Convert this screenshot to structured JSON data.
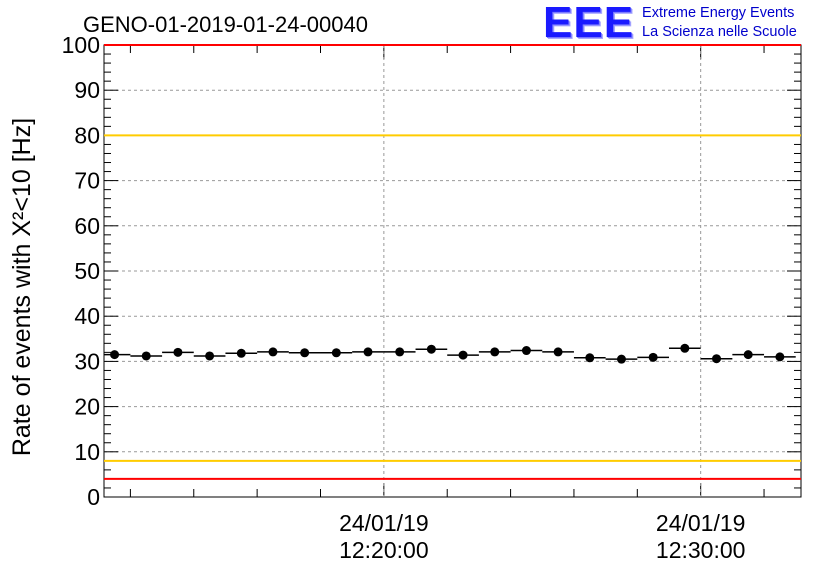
{
  "logo": {
    "mark": "EEE",
    "line1": "Extreme Energy Events",
    "line2": "La Scienza nelle Scuole",
    "color": "#1a1aff"
  },
  "chart_data": {
    "type": "scatter",
    "title": "GENO-01-2019-01-24-00040",
    "ylabel": "Rate of events with X²<10 [Hz]",
    "xlabel": "",
    "ylim": [
      0,
      100
    ],
    "yticks": [
      0,
      10,
      20,
      30,
      40,
      50,
      60,
      70,
      80,
      90,
      100
    ],
    "xlim": [
      "24/01/19 12:11:10",
      "24/01/19 12:33:10"
    ],
    "xticks": [
      {
        "x": "24/01/19 12:20:00",
        "date": "24/01/19",
        "time": "12:20:00"
      },
      {
        "x": "24/01/19 12:30:00",
        "date": "24/01/19",
        "time": "12:30:00"
      }
    ],
    "grid": true,
    "series": [
      {
        "x": [
          "12:11:30",
          "12:12:30",
          "12:13:30",
          "12:14:30",
          "12:15:30",
          "12:16:30",
          "12:17:30",
          "12:18:30",
          "12:19:30",
          "12:20:30",
          "12:21:30",
          "12:22:30",
          "12:23:30",
          "12:24:30",
          "12:25:30",
          "12:26:30",
          "12:27:30",
          "12:28:30",
          "12:29:30",
          "12:30:30",
          "12:31:30",
          "12:32:30"
        ],
        "values": [
          31.5,
          31.2,
          32.0,
          31.2,
          31.8,
          32.1,
          31.9,
          31.9,
          32.1,
          32.1,
          32.7,
          31.4,
          32.1,
          32.4,
          32.1,
          30.8,
          30.5,
          30.9,
          32.9,
          30.6,
          31.5,
          31.0
        ],
        "color": "#000000"
      }
    ],
    "reference_lines": [
      {
        "y": 100,
        "color": "#ff0000"
      },
      {
        "y": 80,
        "color": "#ffcc00"
      },
      {
        "y": 8,
        "color": "#ffcc00"
      },
      {
        "y": 4,
        "color": "#ff0000"
      }
    ]
  }
}
